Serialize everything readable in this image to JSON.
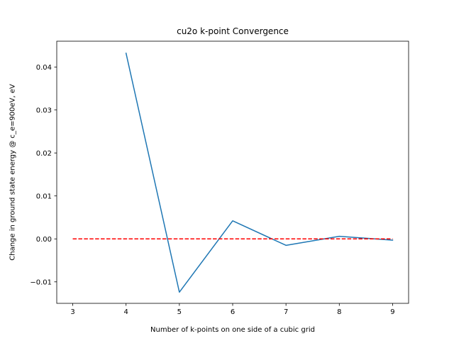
{
  "chart_data": {
    "type": "line",
    "title": "cu2o k-point Convergence",
    "xlabel": "Number of k-points on one side of a cubic grid",
    "ylabel": "Change in ground state energy @ c_e=900eV, eV",
    "xlim": [
      2.7,
      9.3
    ],
    "ylim": [
      -0.015,
      0.046
    ],
    "xticks": [
      3,
      4,
      5,
      6,
      7,
      8,
      9
    ],
    "xtick_labels": [
      "3",
      "4",
      "5",
      "6",
      "7",
      "8",
      "9"
    ],
    "yticks": [
      -0.01,
      0.0,
      0.01,
      0.02,
      0.03,
      0.04
    ],
    "ytick_labels": [
      "−0.01",
      "0.00",
      "0.01",
      "0.02",
      "0.03",
      "0.04"
    ],
    "grid": false,
    "series": [
      {
        "x": [
          4,
          5,
          6,
          7,
          8,
          9
        ],
        "values": [
          0.0432,
          -0.0124,
          0.0042,
          -0.0015,
          0.0006,
          -0.0003
        ],
        "color": "#1f77b4",
        "style": "solid"
      },
      {
        "x": [
          3,
          9
        ],
        "values": [
          0.0,
          0.0
        ],
        "color": "#ff0000",
        "style": "dashed"
      }
    ]
  }
}
